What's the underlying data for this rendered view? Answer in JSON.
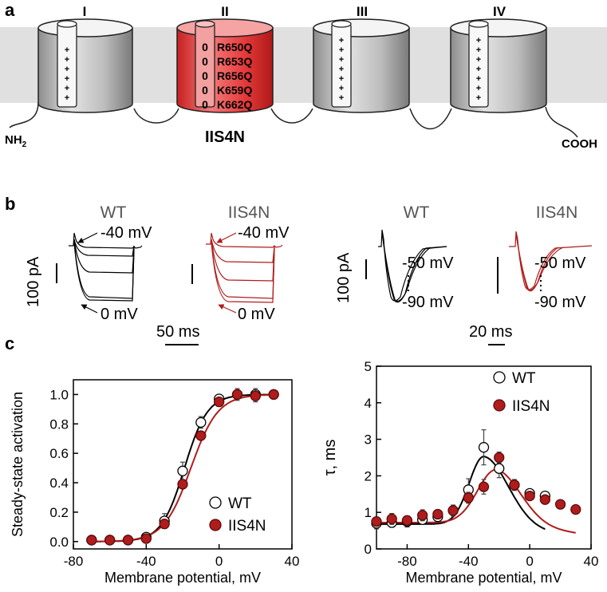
{
  "panel_a": {
    "label": "a",
    "domains": [
      {
        "numeral": "I"
      },
      {
        "numeral": "II",
        "zeros": [
          "0",
          "0",
          "0",
          "0",
          "0"
        ],
        "mutations": [
          "R650Q",
          "R653Q",
          "R656Q",
          "K659Q",
          "K662Q"
        ]
      },
      {
        "numeral": "III"
      },
      {
        "numeral": "IV"
      }
    ],
    "nh2": "NH",
    "nh2_sub": "2",
    "cooh": "COOH",
    "mutant_name": "IIS4N",
    "plus": "+",
    "colors": {
      "membrane": "#e0e0e0",
      "mutant": "#e53b3b",
      "wt": "#bdbdbd"
    }
  },
  "panel_b": {
    "label": "b",
    "left": {
      "wt_title": "WT",
      "mut_title": "IIS4N",
      "v_top": "-40 mV",
      "v_bottom": "0 mV",
      "scale_y": "100 pA",
      "scale_x": "50 ms"
    },
    "right": {
      "wt_title": "WT",
      "mut_title": "IIS4N",
      "v_top": "-50 mV",
      "v_bottom": "-90 mV",
      "scale_y": "100 pA",
      "scale_x": "20 ms"
    },
    "colors": {
      "wt": "#000000",
      "mut": "#b01c1c"
    }
  },
  "panel_c": {
    "label": "c"
  },
  "chart_data": [
    {
      "type": "line",
      "xlabel": "Membrane potential, mV",
      "ylabel": "Steady-state activation",
      "xlim": [
        -80,
        40
      ],
      "ylim": [
        -0.05,
        1.1
      ],
      "xticks": [
        "-80",
        "-40",
        "0",
        "40"
      ],
      "yticks": [
        "0.0",
        "0.2",
        "0.4",
        "0.6",
        "0.8",
        "1.0"
      ],
      "legend_position": "bottom-right",
      "series": [
        {
          "name": "WT",
          "marker": "open-circle",
          "color": "#000000",
          "x": [
            -70,
            -60,
            -50,
            -40,
            -30,
            -20,
            -10,
            0,
            10,
            20,
            30
          ],
          "y": [
            0.01,
            0.01,
            0.01,
            0.03,
            0.14,
            0.48,
            0.81,
            0.97,
            1.0,
            1.0,
            1.0
          ]
        },
        {
          "name": "IIS4N",
          "marker": "filled-circle",
          "color": "#b01c1c",
          "x": [
            -70,
            -60,
            -50,
            -40,
            -30,
            -20,
            -10,
            0,
            10,
            20,
            30
          ],
          "y": [
            0.01,
            0.01,
            0.01,
            0.02,
            0.12,
            0.39,
            0.72,
            0.95,
            1.0,
            0.99,
            1.0
          ]
        }
      ]
    },
    {
      "type": "line",
      "xlabel": "Membrane potential, mV",
      "ylabel": "τ, ms",
      "xlim": [
        -100,
        40
      ],
      "ylim": [
        0,
        5
      ],
      "xticks": [
        "-80",
        "-40",
        "0",
        "40"
      ],
      "yticks": [
        "0",
        "1",
        "2",
        "3",
        "4",
        "5"
      ],
      "legend_position": "top-right",
      "series": [
        {
          "name": "WT",
          "marker": "open-circle",
          "color": "#000000",
          "x": [
            -100,
            -90,
            -80,
            -70,
            -60,
            -50,
            -40,
            -30,
            -20,
            -10,
            0,
            10
          ],
          "y": [
            0.7,
            0.72,
            0.75,
            0.8,
            0.88,
            1.05,
            1.62,
            2.78,
            2.2,
            1.75,
            1.52,
            1.45
          ]
        },
        {
          "name": "IIS4N",
          "marker": "filled-circle",
          "color": "#b01c1c",
          "x": [
            -100,
            -90,
            -80,
            -70,
            -60,
            -50,
            -40,
            -30,
            -20,
            -10,
            0,
            10,
            20,
            30
          ],
          "y": [
            0.75,
            0.82,
            0.78,
            0.92,
            0.95,
            1.05,
            1.4,
            1.7,
            2.5,
            1.75,
            1.45,
            1.35,
            1.22,
            1.08
          ]
        }
      ]
    }
  ]
}
